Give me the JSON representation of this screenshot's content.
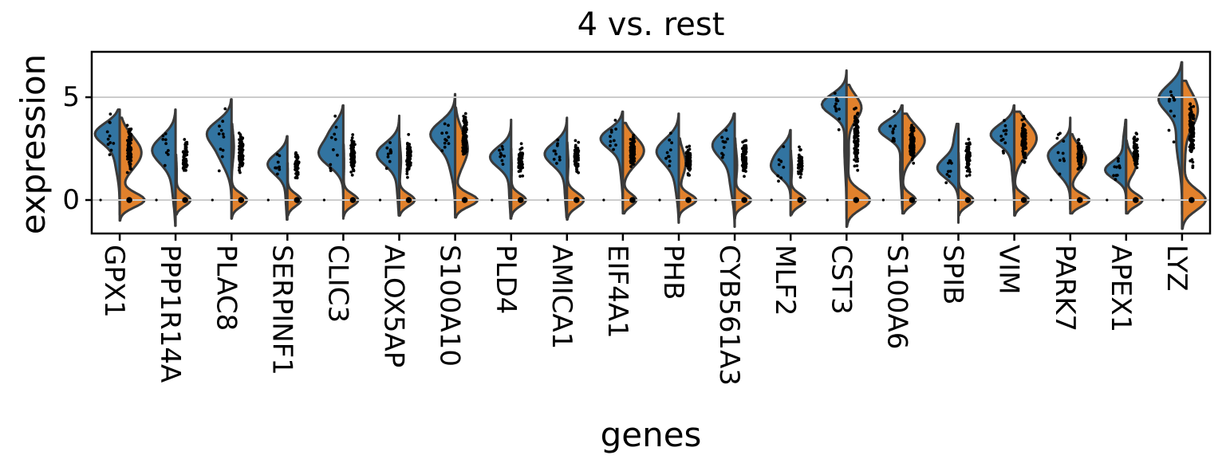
{
  "chart_data": {
    "type": "violin",
    "variant": "split-violin",
    "title": "4 vs. rest",
    "xlabel": "genes",
    "ylabel": "expression",
    "yticks": [
      0,
      5
    ],
    "ytick_labels": [
      "0",
      "5"
    ],
    "ylim": [
      -1.65,
      7.2
    ],
    "grid_values": [
      0,
      5
    ],
    "grid_on": true,
    "legend": "none",
    "series": [
      {
        "name": "4",
        "side": "left",
        "color": "#3274a1"
      },
      {
        "name": "rest",
        "side": "right",
        "color": "#e1812c"
      }
    ],
    "colors": {
      "left": "#3274a1",
      "right": "#e1812c",
      "edge": "#3a3a3a",
      "points": "#000000",
      "grid": "#cccccc",
      "axis": "#000000",
      "background": "#ffffff"
    },
    "genes": [
      {
        "name": "GPX1",
        "left": {
          "mix": [
            [
              3.25,
              0.5,
              0.75
            ],
            [
              2.1,
              0.8,
              0.25
            ]
          ],
          "range": [
            -0.7,
            4.4
          ],
          "width": 1.0
        },
        "right": {
          "mix": [
            [
              0,
              0.35,
              0.33
            ],
            [
              2.3,
              0.8,
              0.67
            ]
          ],
          "range": [
            -1.0,
            4.0
          ],
          "width": 1.0
        },
        "strip": {
          "range": [
            1.0,
            3.9
          ],
          "n": 85
        },
        "left_points": {
          "n": 11,
          "mean": 3.1,
          "sd": 0.55
        },
        "zero_point": true
      },
      {
        "name": "PPP1R14A",
        "left": {
          "mix": [
            [
              2.45,
              0.65,
              0.8
            ],
            [
              0.9,
              1.0,
              0.2
            ]
          ],
          "range": [
            -1.25,
            4.4
          ],
          "width": 0.95
        },
        "right": {
          "mix": [
            [
              0,
              0.3,
              0.85
            ],
            [
              1.3,
              0.7,
              0.15
            ]
          ],
          "range": [
            -0.7,
            2.2
          ],
          "width": 0.6
        },
        "strip": {
          "range": [
            0.9,
            3.2
          ],
          "n": 55
        },
        "left_points": {
          "n": 9,
          "mean": 2.4,
          "sd": 0.5
        },
        "zero_point": true
      },
      {
        "name": "PLAC8",
        "left": {
          "mix": [
            [
              3.35,
              0.55,
              0.55
            ],
            [
              2.3,
              0.75,
              0.45
            ]
          ],
          "range": [
            -0.9,
            4.9
          ],
          "width": 1.0
        },
        "right": {
          "mix": [
            [
              0,
              0.32,
              0.75
            ],
            [
              2.6,
              0.7,
              0.25
            ]
          ],
          "range": [
            -0.9,
            3.7
          ],
          "width": 0.62
        },
        "strip": {
          "range": [
            0.9,
            3.6
          ],
          "n": 90
        },
        "left_points": {
          "n": 11,
          "mean": 3.1,
          "sd": 0.6
        },
        "zero_point": true
      },
      {
        "name": "SERPINF1",
        "left": {
          "mix": [
            [
              1.75,
              0.5,
              0.85
            ],
            [
              0.4,
              0.9,
              0.15
            ]
          ],
          "range": [
            -0.95,
            3.1
          ],
          "width": 0.8
        },
        "right": {
          "mix": [
            [
              0,
              0.3,
              0.95
            ],
            [
              1.3,
              0.6,
              0.05
            ]
          ],
          "range": [
            -0.75,
            1.8
          ],
          "width": 0.55
        },
        "strip": {
          "range": [
            0.9,
            2.6
          ],
          "n": 45
        },
        "left_points": {
          "n": 8,
          "mean": 1.7,
          "sd": 0.4
        },
        "zero_point": true
      },
      {
        "name": "CLIC3",
        "left": {
          "mix": [
            [
              2.25,
              0.6,
              0.75
            ],
            [
              3.4,
              0.5,
              0.25
            ]
          ],
          "range": [
            -0.9,
            4.6
          ],
          "width": 1.0
        },
        "right": {
          "mix": [
            [
              0,
              0.3,
              0.9
            ],
            [
              1.8,
              0.7,
              0.1
            ]
          ],
          "range": [
            -0.8,
            2.7
          ],
          "width": 0.6
        },
        "strip": {
          "range": [
            0.9,
            3.4
          ],
          "n": 85
        },
        "left_points": {
          "n": 10,
          "mean": 2.4,
          "sd": 0.6
        },
        "zero_point": true
      },
      {
        "name": "ALOX5AP",
        "left": {
          "mix": [
            [
              2.25,
              0.55,
              0.85
            ],
            [
              0.8,
              0.9,
              0.15
            ]
          ],
          "range": [
            -0.75,
            4.1
          ],
          "width": 0.9
        },
        "right": {
          "mix": [
            [
              0,
              0.3,
              0.82
            ],
            [
              1.9,
              0.6,
              0.18
            ]
          ],
          "range": [
            -0.75,
            3.0
          ],
          "width": 0.62
        },
        "strip": {
          "range": [
            1.0,
            3.3
          ],
          "n": 80
        },
        "left_points": {
          "n": 10,
          "mean": 2.2,
          "sd": 0.5
        },
        "zero_point": true
      },
      {
        "name": "S100A10",
        "left": {
          "mix": [
            [
              3.25,
              0.6,
              0.7
            ],
            [
              2.1,
              0.9,
              0.3
            ]
          ],
          "range": [
            -0.7,
            5.15
          ],
          "width": 1.0
        },
        "right": {
          "mix": [
            [
              0,
              0.32,
              0.4
            ],
            [
              2.5,
              0.85,
              0.6
            ]
          ],
          "range": [
            -0.85,
            4.5
          ],
          "width": 0.9
        },
        "strip": {
          "range": [
            1.6,
            4.4
          ],
          "n": 95
        },
        "left_points": {
          "n": 11,
          "mean": 3.2,
          "sd": 0.6
        },
        "zero_point": true
      },
      {
        "name": "PLD4",
        "left": {
          "mix": [
            [
              2.1,
              0.5,
              0.85
            ],
            [
              0.6,
              0.9,
              0.15
            ]
          ],
          "range": [
            -0.9,
            3.9
          ],
          "width": 0.85
        },
        "right": {
          "mix": [
            [
              0,
              0.3,
              0.93
            ],
            [
              1.5,
              0.6,
              0.07
            ]
          ],
          "range": [
            -0.8,
            2.5
          ],
          "width": 0.6
        },
        "strip": {
          "range": [
            0.9,
            3.0
          ],
          "n": 60
        },
        "left_points": {
          "n": 9,
          "mean": 2.1,
          "sd": 0.5
        },
        "zero_point": true
      },
      {
        "name": "AMICA1",
        "left": {
          "mix": [
            [
              2.25,
              0.55,
              0.85
            ],
            [
              0.7,
              0.9,
              0.15
            ]
          ],
          "range": [
            -0.85,
            4.0
          ],
          "width": 0.9
        },
        "right": {
          "mix": [
            [
              0,
              0.35,
              0.88
            ],
            [
              1.8,
              0.6,
              0.12
            ]
          ],
          "range": [
            -0.95,
            2.8
          ],
          "width": 0.68
        },
        "strip": {
          "range": [
            1.0,
            3.2
          ],
          "n": 70
        },
        "left_points": {
          "n": 10,
          "mean": 2.2,
          "sd": 0.5
        },
        "zero_point": true
      },
      {
        "name": "EIF4A1",
        "left": {
          "mix": [
            [
              3.0,
              0.48,
              0.8
            ],
            [
              1.9,
              0.85,
              0.2
            ]
          ],
          "range": [
            -0.45,
            4.3
          ],
          "width": 0.9
        },
        "right": {
          "mix": [
            [
              0,
              0.3,
              0.22
            ],
            [
              2.4,
              0.68,
              0.78
            ]
          ],
          "range": [
            -0.65,
            3.75
          ],
          "width": 0.85
        },
        "strip": {
          "range": [
            1.3,
            3.5
          ],
          "n": 90
        },
        "left_points": {
          "n": 10,
          "mean": 2.95,
          "sd": 0.45
        },
        "zero_point": true
      },
      {
        "name": "PHB",
        "left": {
          "mix": [
            [
              2.4,
              0.6,
              0.78
            ],
            [
              1.1,
              0.9,
              0.22
            ]
          ],
          "range": [
            -1.1,
            4.2
          ],
          "width": 0.9
        },
        "right": {
          "mix": [
            [
              0,
              0.3,
              0.55
            ],
            [
              1.8,
              0.62,
              0.45
            ]
          ],
          "range": [
            -0.85,
            3.0
          ],
          "width": 0.7
        },
        "strip": {
          "range": [
            1.0,
            2.9
          ],
          "n": 75
        },
        "left_points": {
          "n": 10,
          "mean": 2.3,
          "sd": 0.5
        },
        "zero_point": true
      },
      {
        "name": "CYB561A3",
        "left": {
          "mix": [
            [
              2.7,
              0.6,
              0.72
            ],
            [
              1.2,
              0.95,
              0.28
            ]
          ],
          "range": [
            -1.3,
            4.2
          ],
          "width": 0.9
        },
        "right": {
          "mix": [
            [
              0,
              0.3,
              0.75
            ],
            [
              1.7,
              0.7,
              0.25
            ]
          ],
          "range": [
            -0.9,
            3.0
          ],
          "width": 0.66
        },
        "strip": {
          "range": [
            1.0,
            3.3
          ],
          "n": 80
        },
        "left_points": {
          "n": 10,
          "mean": 2.6,
          "sd": 0.6
        },
        "zero_point": true
      },
      {
        "name": "MLF2",
        "left": {
          "mix": [
            [
              1.55,
              0.45,
              0.65
            ],
            [
              2.35,
              0.42,
              0.35
            ]
          ],
          "range": [
            -0.75,
            3.4
          ],
          "width": 0.8
        },
        "right": {
          "mix": [
            [
              0,
              0.3,
              0.88
            ],
            [
              1.5,
              0.5,
              0.12
            ]
          ],
          "range": [
            -0.7,
            2.4
          ],
          "width": 0.6
        },
        "strip": {
          "range": [
            0.9,
            2.7
          ],
          "n": 55
        },
        "left_points": {
          "n": 9,
          "mean": 1.6,
          "sd": 0.45
        },
        "zero_point": true
      },
      {
        "name": "CST3",
        "left": {
          "mix": [
            [
              4.65,
              0.5,
              0.82
            ],
            [
              2.6,
              1.2,
              0.18
            ]
          ],
          "range": [
            -0.9,
            6.3
          ],
          "width": 1.0
        },
        "right": {
          "mix": [
            [
              0,
              0.45,
              0.48
            ],
            [
              4.5,
              0.6,
              0.4
            ],
            [
              2.3,
              1.2,
              0.12
            ]
          ],
          "range": [
            -1.3,
            5.6
          ],
          "width": 0.95
        },
        "strip": {
          "range": [
            1.2,
            5.0
          ],
          "n": 105
        },
        "left_points": {
          "n": 11,
          "mean": 4.5,
          "sd": 0.55
        },
        "zero_point": true
      },
      {
        "name": "S100A6",
        "left": {
          "mix": [
            [
              3.45,
              0.45,
              0.82
            ],
            [
              1.6,
              1.0,
              0.18
            ]
          ],
          "range": [
            -0.45,
            4.6
          ],
          "width": 0.95
        },
        "right": {
          "mix": [
            [
              0,
              0.3,
              0.2
            ],
            [
              2.9,
              0.72,
              0.8
            ]
          ],
          "range": [
            -0.65,
            4.2
          ],
          "width": 0.9
        },
        "strip": {
          "range": [
            1.6,
            4.0
          ],
          "n": 90
        },
        "left_points": {
          "n": 10,
          "mean": 3.4,
          "sd": 0.45
        },
        "zero_point": true
      },
      {
        "name": "SPIB",
        "left": {
          "mix": [
            [
              1.55,
              0.5,
              0.8
            ],
            [
              2.9,
              0.6,
              0.2
            ]
          ],
          "range": [
            -1.1,
            3.7
          ],
          "width": 0.85
        },
        "right": {
          "mix": [
            [
              0,
              0.3,
              0.93
            ],
            [
              1.4,
              0.6,
              0.07
            ]
          ],
          "range": [
            -0.75,
            2.3
          ],
          "width": 0.6
        },
        "strip": {
          "range": [
            0.9,
            3.3
          ],
          "n": 65
        },
        "left_points": {
          "n": 9,
          "mean": 1.5,
          "sd": 0.45
        },
        "zero_point": true
      },
      {
        "name": "VIM",
        "left": {
          "mix": [
            [
              3.2,
              0.5,
              0.82
            ],
            [
              1.9,
              0.9,
              0.18
            ]
          ],
          "range": [
            -0.45,
            4.6
          ],
          "width": 0.95
        },
        "right": {
          "mix": [
            [
              0,
              0.3,
              0.2
            ],
            [
              3.0,
              0.78,
              0.8
            ]
          ],
          "range": [
            -0.75,
            4.3
          ],
          "width": 0.9
        },
        "strip": {
          "range": [
            1.5,
            4.3
          ],
          "n": 95
        },
        "left_points": {
          "n": 11,
          "mean": 3.2,
          "sd": 0.5
        },
        "zero_point": true
      },
      {
        "name": "PARK7",
        "left": {
          "mix": [
            [
              2.35,
              0.45,
              0.55
            ],
            [
              1.55,
              0.5,
              0.45
            ]
          ],
          "range": [
            -0.45,
            4.0
          ],
          "width": 0.9
        },
        "right": {
          "mix": [
            [
              0,
              0.3,
              0.38
            ],
            [
              2.0,
              0.6,
              0.62
            ]
          ],
          "range": [
            -0.65,
            3.2
          ],
          "width": 0.78
        },
        "strip": {
          "range": [
            1.2,
            3.3
          ],
          "n": 75
        },
        "left_points": {
          "n": 10,
          "mean": 2.1,
          "sd": 0.55
        },
        "zero_point": true
      },
      {
        "name": "APEX1",
        "left": {
          "mix": [
            [
              1.45,
              0.42,
              0.8
            ],
            [
              2.7,
              0.7,
              0.2
            ]
          ],
          "range": [
            -0.45,
            3.9
          ],
          "width": 0.85
        },
        "right": {
          "mix": [
            [
              0,
              0.3,
              0.5
            ],
            [
              1.7,
              0.5,
              0.5
            ]
          ],
          "range": [
            -0.65,
            2.9
          ],
          "width": 0.66
        },
        "strip": {
          "range": [
            1.1,
            3.6
          ],
          "n": 70
        },
        "left_points": {
          "n": 10,
          "mean": 1.5,
          "sd": 0.45
        },
        "zero_point": true
      },
      {
        "name": "LYZ",
        "left": {
          "mix": [
            [
              4.95,
              0.65,
              0.7
            ],
            [
              2.9,
              1.1,
              0.3
            ]
          ],
          "range": [
            -0.7,
            6.7
          ],
          "width": 0.95
        },
        "right": {
          "mix": [
            [
              0,
              0.5,
              0.42
            ],
            [
              4.4,
              0.85,
              0.48
            ],
            [
              2.0,
              1.0,
              0.1
            ]
          ],
          "range": [
            -1.4,
            5.8
          ],
          "width": 0.95
        },
        "strip": {
          "range": [
            1.4,
            5.0
          ],
          "n": 110
        },
        "left_points": {
          "n": 11,
          "mean": 4.6,
          "sd": 0.8
        },
        "zero_point": true
      }
    ]
  }
}
